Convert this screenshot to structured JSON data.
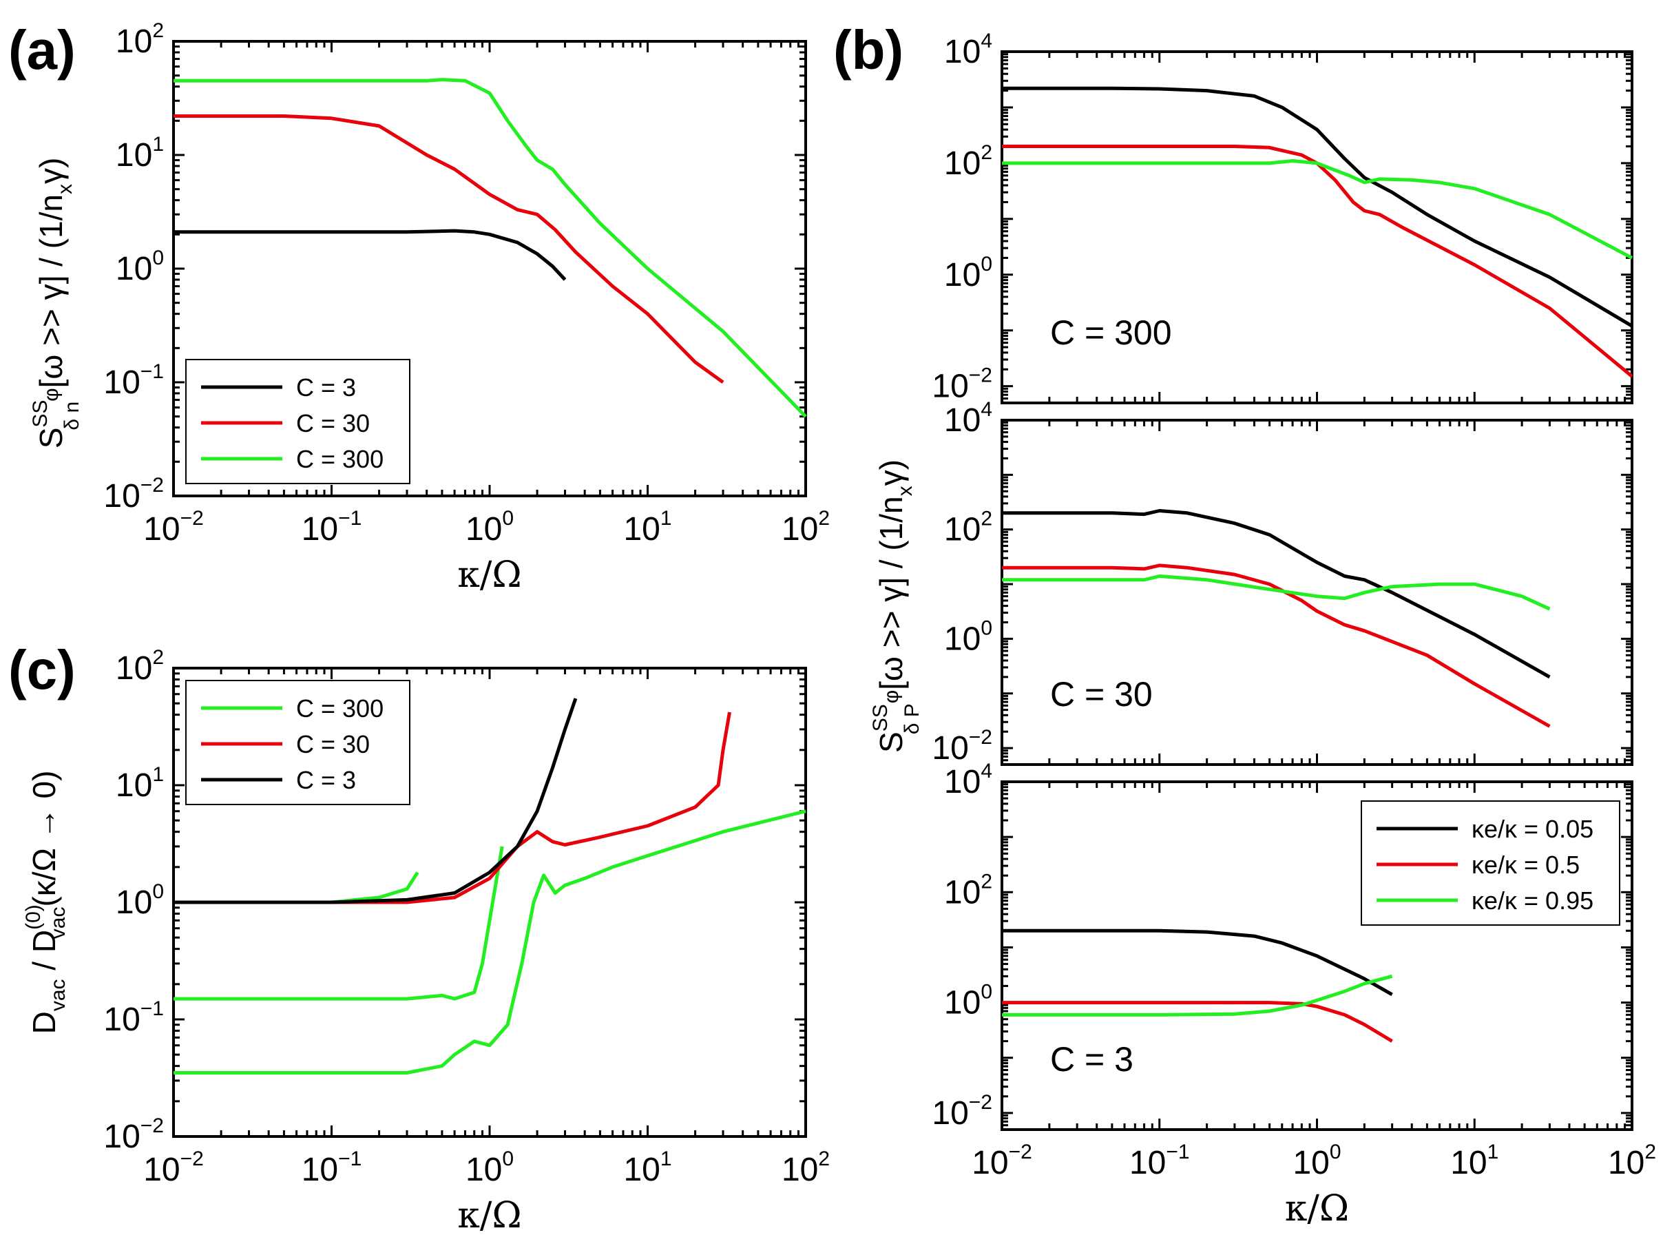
{
  "panel_labels": {
    "a": "(a)",
    "b": "(b)",
    "c": "(c)"
  },
  "colors": {
    "black": "#000000",
    "red": "#e8000b",
    "green": "#22ee22"
  },
  "ylabels": {
    "a": "S^{SS}_{δ n^φ}[ω >> γ] / (1/n_x γ)",
    "b": "S^{SS}_{δ P^φ}[ω >> γ] / (1/n_x γ)",
    "c": "D_vac / D_vac^(0) (κ/Ω → 0)"
  },
  "chart_data": [
    {
      "id": "a",
      "type": "line",
      "xlabel": "κ/Ω",
      "xscale": "log",
      "yscale": "log",
      "xlim": [
        0.01,
        100
      ],
      "ylim": [
        0.01,
        100
      ],
      "xticks": [
        "10^-2",
        "10^-1",
        "10^0",
        "10^1",
        "10^2"
      ],
      "yticks": [
        "10^-2",
        "10^-1",
        "10^0",
        "10^1",
        "10^2"
      ],
      "legend": {
        "position": "lower-left",
        "entries": [
          "C = 3",
          "C = 30",
          "C = 300"
        ]
      },
      "series": [
        {
          "name": "C = 3",
          "color": "#000000",
          "x": [
            0.01,
            0.1,
            0.3,
            0.6,
            0.8,
            1.0,
            1.5,
            2.0,
            2.5,
            3.0
          ],
          "y": [
            2.1,
            2.1,
            2.1,
            2.15,
            2.1,
            2.0,
            1.7,
            1.35,
            1.05,
            0.8
          ]
        },
        {
          "name": "C = 30",
          "color": "#e8000b",
          "x": [
            0.01,
            0.05,
            0.1,
            0.2,
            0.4,
            0.6,
            1.0,
            1.5,
            2.0,
            2.6,
            3.5,
            6,
            10,
            20,
            30
          ],
          "y": [
            22,
            22,
            21,
            18,
            10,
            7.5,
            4.5,
            3.3,
            3.0,
            2.2,
            1.4,
            0.7,
            0.4,
            0.15,
            0.1
          ]
        },
        {
          "name": "C = 300",
          "color": "#22ee22",
          "x": [
            0.01,
            0.1,
            0.4,
            0.5,
            0.7,
            1.0,
            1.3,
            1.7,
            2.0,
            2.5,
            3.0,
            5,
            10,
            30,
            100
          ],
          "y": [
            45,
            45,
            45,
            46,
            45,
            35,
            20,
            12,
            9,
            7.5,
            5.5,
            2.5,
            1.0,
            0.28,
            0.05
          ]
        }
      ]
    },
    {
      "id": "b-top",
      "type": "line",
      "annotation": "C = 300",
      "xscale": "log",
      "yscale": "log",
      "xlim": [
        0.01,
        100
      ],
      "ylim": [
        0.005,
        10000
      ],
      "yticks": [
        "10^-2",
        "10^0",
        "10^2",
        "10^4"
      ],
      "series": [
        {
          "name": "κe/κ = 0.05",
          "color": "#000000",
          "x": [
            0.01,
            0.05,
            0.1,
            0.2,
            0.4,
            0.6,
            1.0,
            1.5,
            2.0,
            3,
            5,
            10,
            30,
            100
          ],
          "y": [
            2200,
            2200,
            2150,
            2000,
            1600,
            1000,
            400,
            120,
            55,
            30,
            12,
            4,
            0.9,
            0.12
          ]
        },
        {
          "name": "κe/κ = 0.5",
          "color": "#e8000b",
          "x": [
            0.01,
            0.1,
            0.3,
            0.5,
            0.8,
            1.0,
            1.3,
            1.7,
            2.0,
            2.5,
            3.5,
            10,
            30,
            100
          ],
          "y": [
            200,
            200,
            200,
            190,
            140,
            100,
            50,
            20,
            14,
            12,
            7,
            1.5,
            0.25,
            0.015
          ]
        },
        {
          "name": "κe/κ = 0.95",
          "color": "#22ee22",
          "x": [
            0.01,
            0.1,
            0.5,
            0.7,
            1.0,
            1.3,
            1.6,
            2.0,
            2.5,
            4,
            6,
            10,
            30,
            100
          ],
          "y": [
            100,
            100,
            100,
            110,
            100,
            75,
            60,
            45,
            52,
            50,
            45,
            35,
            12,
            2
          ]
        }
      ]
    },
    {
      "id": "b-middle",
      "type": "line",
      "annotation": "C = 30",
      "xscale": "log",
      "yscale": "log",
      "xlim": [
        0.01,
        100
      ],
      "ylim": [
        0.005,
        10000
      ],
      "yticks": [
        "10^-2",
        "10^0",
        "10^2",
        "10^4"
      ],
      "series": [
        {
          "name": "κe/κ = 0.05",
          "color": "#000000",
          "x": [
            0.01,
            0.05,
            0.08,
            0.1,
            0.15,
            0.3,
            0.5,
            1.0,
            1.5,
            2.0,
            3,
            10,
            30
          ],
          "y": [
            200,
            200,
            190,
            220,
            200,
            130,
            80,
            25,
            14,
            12,
            7,
            1.2,
            0.2
          ]
        },
        {
          "name": "κe/κ = 0.5",
          "color": "#e8000b",
          "x": [
            0.01,
            0.05,
            0.08,
            0.1,
            0.15,
            0.3,
            0.5,
            0.8,
            1.0,
            1.5,
            2.0,
            5,
            10,
            30
          ],
          "y": [
            20,
            20,
            19,
            22,
            20,
            15,
            10,
            5,
            3.2,
            1.8,
            1.4,
            0.5,
            0.15,
            0.025
          ]
        },
        {
          "name": "κe/κ = 0.95",
          "color": "#22ee22",
          "x": [
            0.01,
            0.05,
            0.08,
            0.1,
            0.2,
            0.5,
            1.0,
            1.5,
            2.0,
            3,
            6,
            10,
            20,
            30
          ],
          "y": [
            12,
            12,
            12,
            14,
            12,
            8,
            6,
            5.5,
            7,
            9,
            10,
            10,
            6,
            3.5
          ]
        }
      ]
    },
    {
      "id": "b-bottom",
      "type": "line",
      "annotation": "C = 3",
      "xlabel": "κ/Ω",
      "xscale": "log",
      "yscale": "log",
      "xlim": [
        0.01,
        100
      ],
      "ylim": [
        0.005,
        10000
      ],
      "xticks": [
        "10^-2",
        "10^-1",
        "10^0",
        "10^1",
        "10^2"
      ],
      "yticks": [
        "10^-2",
        "10^0",
        "10^2",
        "10^4"
      ],
      "legend": {
        "position": "top-right",
        "entries": [
          "κe/κ = 0.05",
          "κe/κ = 0.5",
          "κe/κ = 0.95"
        ]
      },
      "series": [
        {
          "name": "κe/κ = 0.05",
          "color": "#000000",
          "x": [
            0.01,
            0.05,
            0.1,
            0.2,
            0.4,
            0.6,
            1.0,
            1.5,
            2.0,
            3.0
          ],
          "y": [
            20,
            20,
            20,
            19,
            16,
            12,
            7,
            4,
            2.7,
            1.4
          ]
        },
        {
          "name": "κe/κ = 0.5",
          "color": "#e8000b",
          "x": [
            0.01,
            0.1,
            0.3,
            0.5,
            0.8,
            1.0,
            1.5,
            2.0,
            3.0
          ],
          "y": [
            1.0,
            1.0,
            1.0,
            1.0,
            0.95,
            0.85,
            0.6,
            0.4,
            0.2
          ]
        },
        {
          "name": "κe/κ = 0.95",
          "color": "#22ee22",
          "x": [
            0.01,
            0.1,
            0.3,
            0.5,
            0.8,
            1.0,
            1.5,
            2.0,
            3.0
          ],
          "y": [
            0.6,
            0.6,
            0.62,
            0.7,
            0.9,
            1.1,
            1.6,
            2.2,
            3.0
          ]
        }
      ]
    },
    {
      "id": "c",
      "type": "line",
      "xlabel": "κ/Ω",
      "xscale": "log",
      "yscale": "log",
      "xlim": [
        0.01,
        100
      ],
      "ylim": [
        0.01,
        100
      ],
      "xticks": [
        "10^-2",
        "10^-1",
        "10^0",
        "10^1",
        "10^2"
      ],
      "yticks": [
        "10^-2",
        "10^-1",
        "10^0",
        "10^1",
        "10^2"
      ],
      "legend": {
        "position": "top-left",
        "entries": [
          "C = 300",
          "C = 30",
          "C = 3"
        ]
      },
      "series": [
        {
          "name": "C = 300",
          "color": "#22ee22",
          "x": [
            0.01,
            0.1,
            0.2,
            0.3,
            0.35
          ],
          "y": [
            1.0,
            1.0,
            1.1,
            1.3,
            1.8
          ]
        },
        {
          "name": "",
          "color": "#22ee22",
          "x": [
            0.01,
            0.1,
            0.3,
            0.5,
            0.6,
            0.8,
            0.9,
            1.0,
            1.1,
            1.2
          ],
          "y": [
            0.15,
            0.15,
            0.15,
            0.16,
            0.15,
            0.17,
            0.3,
            0.7,
            1.5,
            3.0
          ]
        },
        {
          "name": "",
          "color": "#22ee22",
          "x": [
            0.01,
            0.1,
            0.3,
            0.5,
            0.6,
            0.8,
            1.0,
            1.3,
            1.6,
            1.9,
            2.2,
            2.6,
            3.0,
            4,
            6,
            10,
            30,
            100
          ],
          "y": [
            0.035,
            0.035,
            0.035,
            0.04,
            0.05,
            0.065,
            0.06,
            0.09,
            0.3,
            1.0,
            1.7,
            1.2,
            1.4,
            1.6,
            2.0,
            2.5,
            4.0,
            6.0
          ]
        },
        {
          "name": "C = 30",
          "color": "#e8000b",
          "x": [
            0.01,
            0.1,
            0.3,
            0.6,
            1.0,
            1.5,
            2.0,
            2.5,
            3.0,
            5,
            10,
            20,
            28,
            30,
            33
          ],
          "y": [
            1.0,
            1.0,
            1.0,
            1.1,
            1.6,
            3.0,
            4.0,
            3.3,
            3.1,
            3.6,
            4.5,
            6.5,
            10,
            20,
            42
          ]
        },
        {
          "name": "C = 3",
          "color": "#000000",
          "x": [
            0.01,
            0.1,
            0.3,
            0.6,
            1.0,
            1.5,
            2.0,
            2.5,
            3.0,
            3.5
          ],
          "y": [
            1.0,
            1.0,
            1.05,
            1.2,
            1.8,
            3.0,
            6.0,
            14,
            30,
            55
          ]
        }
      ]
    }
  ]
}
